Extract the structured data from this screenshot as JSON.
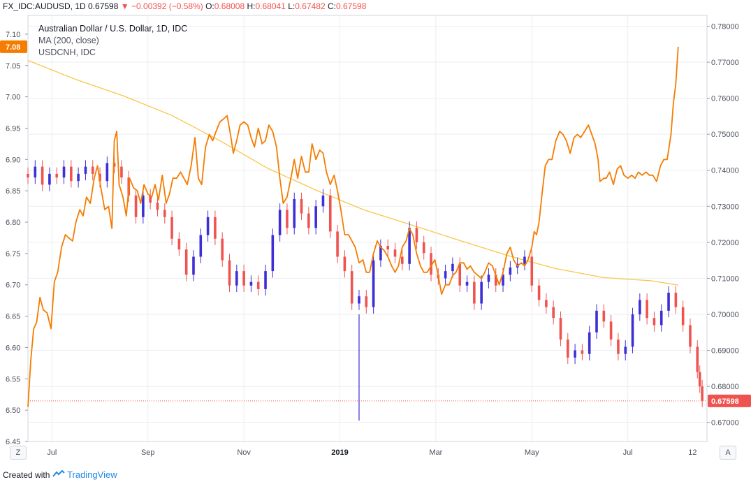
{
  "header": {
    "symbol": "FX_IDC:AUDUSD, 1D",
    "last": "0.67598",
    "arrow": "▼",
    "change": "−0.00392 (−0.58%)",
    "o_label": "O:",
    "o": "0.68008",
    "h_label": "H:",
    "h": "0.68041",
    "l_label": "L:",
    "l": "0.67482",
    "c_label": "C:",
    "c": "0.67598"
  },
  "legend": {
    "title": "Australian Dollar / U.S. Dollar, 1D, IDC",
    "ma": "MA (200, close)",
    "overlay": "USDCNH, IDC"
  },
  "footer": {
    "created_with": "Created with",
    "brand": "TradingView"
  },
  "controls": {
    "left": "Z",
    "right": "A"
  },
  "colors": {
    "up": "#3d2fd6",
    "down": "#ef5350",
    "overlay": "#f57c00",
    "ma": "#f9c64a",
    "grid": "#ecedf0",
    "badge_left": "#f57c00",
    "badge_right": "#ef5350"
  },
  "chart_data": {
    "type": "candlestick",
    "left_axis": {
      "label": "USDCNH",
      "ticks": [
        "7.10",
        "7.05",
        "7.00",
        "6.95",
        "6.90",
        "6.85",
        "6.80",
        "6.75",
        "6.70",
        "6.65",
        "6.60",
        "6.55",
        "6.50",
        "6.45"
      ],
      "range": [
        6.45,
        7.13
      ],
      "last_badge": "7.08"
    },
    "right_axis": {
      "label": "AUDUSD",
      "ticks": [
        "0.78000",
        "0.77000",
        "0.76000",
        "0.75000",
        "0.74000",
        "0.73000",
        "0.72000",
        "0.71000",
        "0.70000",
        "0.69000",
        "0.68000",
        "0.67000"
      ],
      "range": [
        0.6647,
        0.783
      ],
      "last_badge": "0.67598"
    },
    "x_labels": [
      "Jul",
      "Sep",
      "Nov",
      "2019",
      "Mar",
      "May",
      "Jul",
      "12"
    ],
    "x_label_pos": [
      0.5,
      2.5,
      4.5,
      6.5,
      8.5,
      10.5,
      12.5,
      13.85
    ],
    "x_range": [
      0.0,
      14.15
    ],
    "audusd_closes": [
      [
        0.0,
        0.738
      ],
      [
        0.15,
        0.741
      ],
      [
        0.3,
        0.736
      ],
      [
        0.45,
        0.739
      ],
      [
        0.6,
        0.738
      ],
      [
        0.75,
        0.741
      ],
      [
        0.9,
        0.737
      ],
      [
        1.05,
        0.739
      ],
      [
        1.2,
        0.741
      ],
      [
        1.35,
        0.739
      ],
      [
        1.5,
        0.737
      ],
      [
        1.65,
        0.742
      ],
      [
        1.8,
        0.741
      ],
      [
        1.95,
        0.738
      ],
      [
        2.1,
        0.733
      ],
      [
        2.25,
        0.727
      ],
      [
        2.4,
        0.733
      ],
      [
        2.55,
        0.731
      ],
      [
        2.7,
        0.729
      ],
      [
        2.85,
        0.727
      ],
      [
        3.0,
        0.721
      ],
      [
        3.15,
        0.718
      ],
      [
        3.3,
        0.711
      ],
      [
        3.45,
        0.716
      ],
      [
        3.6,
        0.722
      ],
      [
        3.75,
        0.727
      ],
      [
        3.9,
        0.721
      ],
      [
        4.05,
        0.715
      ],
      [
        4.2,
        0.708
      ],
      [
        4.35,
        0.712
      ],
      [
        4.5,
        0.708
      ],
      [
        4.65,
        0.709
      ],
      [
        4.8,
        0.707
      ],
      [
        4.95,
        0.712
      ],
      [
        5.1,
        0.722
      ],
      [
        5.25,
        0.729
      ],
      [
        5.4,
        0.724
      ],
      [
        5.55,
        0.732
      ],
      [
        5.7,
        0.728
      ],
      [
        5.85,
        0.724
      ],
      [
        6.0,
        0.73
      ],
      [
        6.15,
        0.733
      ],
      [
        6.3,
        0.723
      ],
      [
        6.45,
        0.716
      ],
      [
        6.6,
        0.712
      ],
      [
        6.75,
        0.703
      ],
      [
        6.9,
        0.705
      ],
      [
        7.05,
        0.702
      ],
      [
        7.2,
        0.715
      ],
      [
        7.35,
        0.719
      ],
      [
        7.5,
        0.718
      ],
      [
        7.65,
        0.716
      ],
      [
        7.8,
        0.714
      ],
      [
        7.95,
        0.724
      ],
      [
        8.1,
        0.72
      ],
      [
        8.25,
        0.717
      ],
      [
        8.4,
        0.711
      ],
      [
        8.55,
        0.71
      ],
      [
        8.7,
        0.712
      ],
      [
        8.85,
        0.714
      ],
      [
        9.0,
        0.708
      ],
      [
        9.15,
        0.709
      ],
      [
        9.3,
        0.703
      ],
      [
        9.45,
        0.709
      ],
      [
        9.6,
        0.711
      ],
      [
        9.75,
        0.708
      ],
      [
        9.9,
        0.711
      ],
      [
        10.05,
        0.713
      ],
      [
        10.2,
        0.714
      ],
      [
        10.35,
        0.716
      ],
      [
        10.5,
        0.708
      ],
      [
        10.65,
        0.704
      ],
      [
        10.8,
        0.702
      ],
      [
        10.95,
        0.699
      ],
      [
        11.1,
        0.693
      ],
      [
        11.25,
        0.688
      ],
      [
        11.4,
        0.69
      ],
      [
        11.55,
        0.689
      ],
      [
        11.7,
        0.695
      ],
      [
        11.85,
        0.701
      ],
      [
        12.0,
        0.698
      ],
      [
        12.15,
        0.693
      ],
      [
        12.3,
        0.689
      ],
      [
        12.45,
        0.691
      ],
      [
        12.6,
        0.7
      ],
      [
        12.75,
        0.704
      ],
      [
        12.9,
        0.699
      ],
      [
        13.05,
        0.697
      ],
      [
        13.2,
        0.701
      ],
      [
        13.35,
        0.706
      ],
      [
        13.5,
        0.702
      ],
      [
        13.65,
        0.697
      ],
      [
        13.8,
        0.691
      ],
      [
        13.95,
        0.684
      ],
      [
        14.0,
        0.68
      ],
      [
        14.05,
        0.676
      ]
    ],
    "usdcnh": [
      [
        0.0,
        6.505
      ],
      [
        0.06,
        6.58
      ],
      [
        0.12,
        6.63
      ],
      [
        0.18,
        6.64
      ],
      [
        0.25,
        6.68
      ],
      [
        0.32,
        6.66
      ],
      [
        0.4,
        6.655
      ],
      [
        0.48,
        6.63
      ],
      [
        0.55,
        6.705
      ],
      [
        0.62,
        6.72
      ],
      [
        0.7,
        6.76
      ],
      [
        0.78,
        6.78
      ],
      [
        0.85,
        6.775
      ],
      [
        0.93,
        6.77
      ],
      [
        1.0,
        6.8
      ],
      [
        1.08,
        6.82
      ],
      [
        1.15,
        6.81
      ],
      [
        1.22,
        6.84
      ],
      [
        1.3,
        6.83
      ],
      [
        1.38,
        6.87
      ],
      [
        1.45,
        6.89
      ],
      [
        1.52,
        6.855
      ],
      [
        1.6,
        6.82
      ],
      [
        1.68,
        6.825
      ],
      [
        1.75,
        6.79
      ],
      [
        1.8,
        6.93
      ],
      [
        1.85,
        6.945
      ],
      [
        1.9,
        6.86
      ],
      [
        1.98,
        6.84
      ],
      [
        2.05,
        6.81
      ],
      [
        2.12,
        6.87
      ],
      [
        2.2,
        6.855
      ],
      [
        2.28,
        6.85
      ],
      [
        2.35,
        6.83
      ],
      [
        2.42,
        6.86
      ],
      [
        2.5,
        6.845
      ],
      [
        2.58,
        6.84
      ],
      [
        2.65,
        6.86
      ],
      [
        2.72,
        6.835
      ],
      [
        2.8,
        6.875
      ],
      [
        2.88,
        6.83
      ],
      [
        2.95,
        6.845
      ],
      [
        3.02,
        6.87
      ],
      [
        3.1,
        6.87
      ],
      [
        3.18,
        6.88
      ],
      [
        3.25,
        6.87
      ],
      [
        3.32,
        6.86
      ],
      [
        3.4,
        6.89
      ],
      [
        3.48,
        6.935
      ],
      [
        3.55,
        6.87
      ],
      [
        3.62,
        6.86
      ],
      [
        3.7,
        6.92
      ],
      [
        3.78,
        6.94
      ],
      [
        3.85,
        6.93
      ],
      [
        3.92,
        6.945
      ],
      [
        4.0,
        6.96
      ],
      [
        4.08,
        6.965
      ],
      [
        4.15,
        6.97
      ],
      [
        4.22,
        6.94
      ],
      [
        4.28,
        6.91
      ],
      [
        4.35,
        6.93
      ],
      [
        4.42,
        6.955
      ],
      [
        4.5,
        6.96
      ],
      [
        4.58,
        6.955
      ],
      [
        4.65,
        6.935
      ],
      [
        4.72,
        6.92
      ],
      [
        4.8,
        6.95
      ],
      [
        4.88,
        6.925
      ],
      [
        4.95,
        6.93
      ],
      [
        5.02,
        6.955
      ],
      [
        5.1,
        6.945
      ],
      [
        5.18,
        6.92
      ],
      [
        5.25,
        6.87
      ],
      [
        5.32,
        6.83
      ],
      [
        5.4,
        6.84
      ],
      [
        5.48,
        6.87
      ],
      [
        5.55,
        6.9
      ],
      [
        5.62,
        6.87
      ],
      [
        5.7,
        6.905
      ],
      [
        5.78,
        6.88
      ],
      [
        5.85,
        6.88
      ],
      [
        5.92,
        6.925
      ],
      [
        6.0,
        6.9
      ],
      [
        6.08,
        6.915
      ],
      [
        6.15,
        6.91
      ],
      [
        6.22,
        6.88
      ],
      [
        6.3,
        6.86
      ],
      [
        6.38,
        6.875
      ],
      [
        6.45,
        6.85
      ],
      [
        6.52,
        6.82
      ],
      [
        6.6,
        6.78
      ],
      [
        6.68,
        6.78
      ],
      [
        6.75,
        6.77
      ],
      [
        6.82,
        6.76
      ],
      [
        6.9,
        6.735
      ],
      [
        6.98,
        6.74
      ],
      [
        7.05,
        6.72
      ],
      [
        7.12,
        6.72
      ],
      [
        7.2,
        6.75
      ],
      [
        7.28,
        6.77
      ],
      [
        7.35,
        6.76
      ],
      [
        7.42,
        6.755
      ],
      [
        7.5,
        6.745
      ],
      [
        7.58,
        6.73
      ],
      [
        7.65,
        6.72
      ],
      [
        7.72,
        6.73
      ],
      [
        7.8,
        6.76
      ],
      [
        7.88,
        6.77
      ],
      [
        7.95,
        6.79
      ],
      [
        8.02,
        6.78
      ],
      [
        8.1,
        6.75
      ],
      [
        8.18,
        6.73
      ],
      [
        8.25,
        6.72
      ],
      [
        8.32,
        6.72
      ],
      [
        8.4,
        6.73
      ],
      [
        8.48,
        6.74
      ],
      [
        8.55,
        6.715
      ],
      [
        8.62,
        6.685
      ],
      [
        8.7,
        6.7
      ],
      [
        8.78,
        6.7
      ],
      [
        8.85,
        6.715
      ],
      [
        8.92,
        6.72
      ],
      [
        9.0,
        6.735
      ],
      [
        9.08,
        6.735
      ],
      [
        9.15,
        6.725
      ],
      [
        9.22,
        6.73
      ],
      [
        9.3,
        6.72
      ],
      [
        9.38,
        6.715
      ],
      [
        9.45,
        6.71
      ],
      [
        9.52,
        6.72
      ],
      [
        9.6,
        6.735
      ],
      [
        9.68,
        6.73
      ],
      [
        9.75,
        6.715
      ],
      [
        9.82,
        6.7
      ],
      [
        9.9,
        6.72
      ],
      [
        9.98,
        6.75
      ],
      [
        10.05,
        6.76
      ],
      [
        10.12,
        6.74
      ],
      [
        10.2,
        6.73
      ],
      [
        10.28,
        6.735
      ],
      [
        10.35,
        6.73
      ],
      [
        10.42,
        6.74
      ],
      [
        10.5,
        6.76
      ],
      [
        10.55,
        6.785
      ],
      [
        10.6,
        6.78
      ],
      [
        10.65,
        6.8
      ],
      [
        10.72,
        6.85
      ],
      [
        10.78,
        6.89
      ],
      [
        10.85,
        6.9
      ],
      [
        10.92,
        6.9
      ],
      [
        11.0,
        6.93
      ],
      [
        11.08,
        6.945
      ],
      [
        11.15,
        6.94
      ],
      [
        11.22,
        6.93
      ],
      [
        11.3,
        6.91
      ],
      [
        11.38,
        6.935
      ],
      [
        11.45,
        6.94
      ],
      [
        11.52,
        6.935
      ],
      [
        11.6,
        6.945
      ],
      [
        11.68,
        6.955
      ],
      [
        11.75,
        6.94
      ],
      [
        11.82,
        6.925
      ],
      [
        11.88,
        6.9
      ],
      [
        11.92,
        6.865
      ],
      [
        12.0,
        6.87
      ],
      [
        12.05,
        6.87
      ],
      [
        12.12,
        6.88
      ],
      [
        12.2,
        6.86
      ],
      [
        12.28,
        6.885
      ],
      [
        12.35,
        6.89
      ],
      [
        12.42,
        6.875
      ],
      [
        12.5,
        6.87
      ],
      [
        12.58,
        6.875
      ],
      [
        12.65,
        6.87
      ],
      [
        12.72,
        6.88
      ],
      [
        12.8,
        6.875
      ],
      [
        12.88,
        6.88
      ],
      [
        12.95,
        6.875
      ],
      [
        13.02,
        6.875
      ],
      [
        13.1,
        6.865
      ],
      [
        13.18,
        6.89
      ],
      [
        13.25,
        6.9
      ],
      [
        13.32,
        6.9
      ],
      [
        13.4,
        6.94
      ],
      [
        13.45,
        6.99
      ],
      [
        13.5,
        7.02
      ],
      [
        13.55,
        7.08
      ]
    ],
    "ma200": [
      [
        0.0,
        0.7705
      ],
      [
        1.0,
        0.7652
      ],
      [
        2.0,
        0.7606
      ],
      [
        3.0,
        0.7552
      ],
      [
        4.0,
        0.7482
      ],
      [
        5.0,
        0.7405
      ],
      [
        6.0,
        0.7345
      ],
      [
        7.0,
        0.729
      ],
      [
        8.0,
        0.7248
      ],
      [
        9.0,
        0.7205
      ],
      [
        10.0,
        0.7163
      ],
      [
        11.0,
        0.7127
      ],
      [
        12.0,
        0.7102
      ],
      [
        13.0,
        0.7093
      ],
      [
        13.55,
        0.7081
      ]
    ],
    "spike_low": {
      "x": 6.9,
      "value": 0.6705
    },
    "last_price_line": 0.67598
  }
}
